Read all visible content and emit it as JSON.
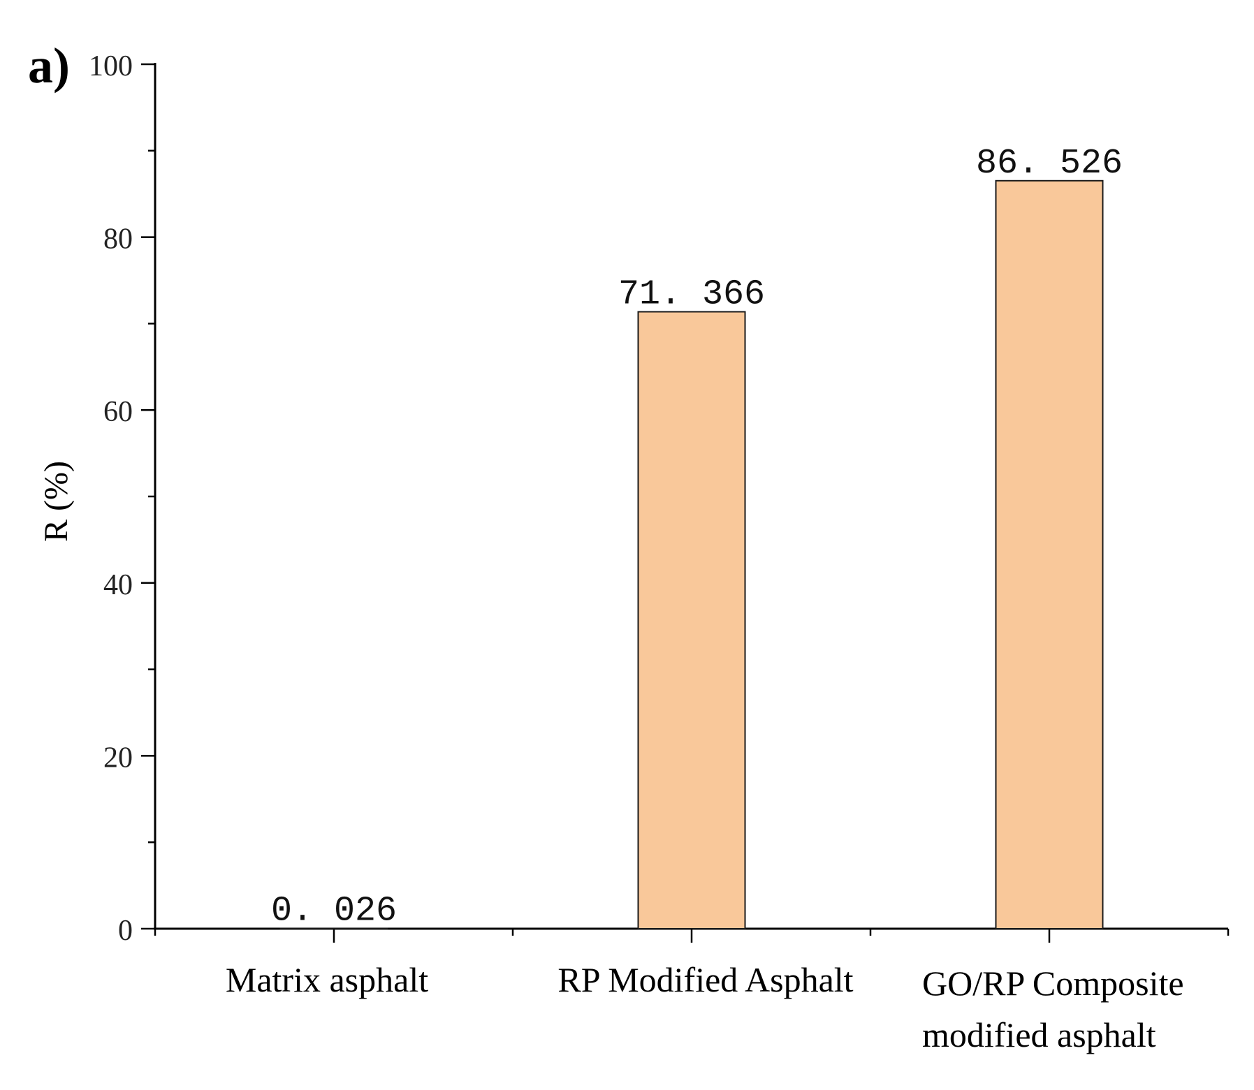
{
  "panel_label": "a)",
  "chart_data": {
    "type": "bar",
    "title": "",
    "xlabel": "",
    "ylabel": "R (%)",
    "ylim": [
      0,
      100
    ],
    "yticks": [
      0,
      20,
      40,
      60,
      80,
      100
    ],
    "yticks_minor_step": 10,
    "grid": false,
    "categories": [
      [
        "Matrix asphalt"
      ],
      [
        "RP Modified Asphalt"
      ],
      [
        "GO/RP Composite",
        "modified asphalt"
      ]
    ],
    "values": [
      0.026,
      71.366,
      86.526
    ],
    "data_labels": [
      "0. 026",
      "71. 366",
      "86. 526"
    ],
    "bar_color": "#F9C89A",
    "bar_edge_color": "#1a1a1a",
    "axis_color": "#000000"
  }
}
